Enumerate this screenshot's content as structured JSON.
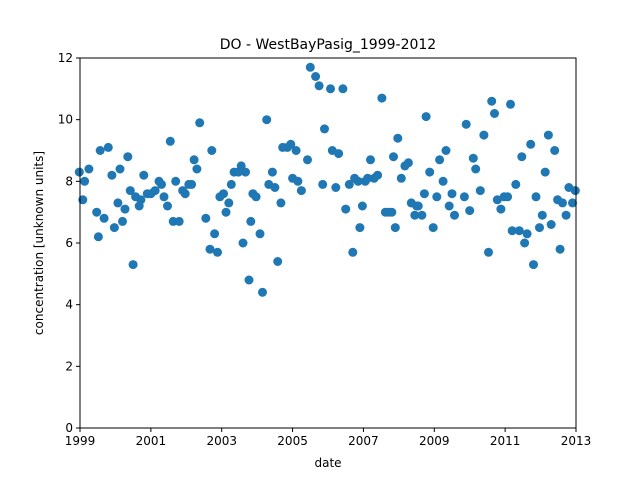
{
  "chart_data": {
    "type": "scatter",
    "title": "DO - WestBayPasig_1999-2012",
    "xlabel": "date",
    "ylabel": "concentration [unknown units]",
    "xlim": [
      1999,
      2013
    ],
    "ylim": [
      0,
      12
    ],
    "x_ticks": [
      "1999",
      "2001",
      "2003",
      "2005",
      "2007",
      "2009",
      "2011",
      "2013"
    ],
    "y_ticks": [
      "0",
      "2",
      "4",
      "6",
      "8",
      "10",
      "12"
    ],
    "grid": false,
    "marker_color": "#1f77b4",
    "series": [
      {
        "points": [
          [
            1998.98,
            8.3
          ],
          [
            1999.08,
            7.4
          ],
          [
            1999.13,
            8.0
          ],
          [
            1999.25,
            8.4
          ],
          [
            1999.47,
            7.0
          ],
          [
            1999.52,
            6.2
          ],
          [
            1999.57,
            9.0
          ],
          [
            1999.68,
            6.8
          ],
          [
            1999.8,
            9.1
          ],
          [
            1999.9,
            8.2
          ],
          [
            1999.97,
            6.5
          ],
          [
            2000.07,
            7.3
          ],
          [
            2000.13,
            8.4
          ],
          [
            2000.2,
            6.7
          ],
          [
            2000.27,
            7.1
          ],
          [
            2000.35,
            8.8
          ],
          [
            2000.42,
            7.7
          ],
          [
            2000.5,
            5.3
          ],
          [
            2000.57,
            7.5
          ],
          [
            2000.67,
            7.2
          ],
          [
            2000.72,
            7.4
          ],
          [
            2000.8,
            8.2
          ],
          [
            2000.9,
            7.6
          ],
          [
            2001.0,
            7.6
          ],
          [
            2001.12,
            7.7
          ],
          [
            2001.23,
            8.0
          ],
          [
            2001.3,
            7.9
          ],
          [
            2001.37,
            7.5
          ],
          [
            2001.47,
            7.2
          ],
          [
            2001.55,
            9.3
          ],
          [
            2001.63,
            6.7
          ],
          [
            2001.7,
            8.0
          ],
          [
            2001.8,
            6.7
          ],
          [
            2001.9,
            7.7
          ],
          [
            2001.97,
            7.6
          ],
          [
            2002.07,
            7.9
          ],
          [
            2002.15,
            7.9
          ],
          [
            2002.22,
            8.7
          ],
          [
            2002.3,
            8.4
          ],
          [
            2002.38,
            9.9
          ],
          [
            2002.55,
            6.8
          ],
          [
            2002.67,
            5.8
          ],
          [
            2002.72,
            9.0
          ],
          [
            2002.8,
            6.3
          ],
          [
            2002.88,
            5.7
          ],
          [
            2002.95,
            7.5
          ],
          [
            2003.05,
            7.6
          ],
          [
            2003.12,
            7.0
          ],
          [
            2003.2,
            7.3
          ],
          [
            2003.27,
            7.9
          ],
          [
            2003.35,
            8.3
          ],
          [
            2003.47,
            8.3
          ],
          [
            2003.55,
            8.5
          ],
          [
            2003.6,
            6.0
          ],
          [
            2003.67,
            8.3
          ],
          [
            2003.77,
            4.8
          ],
          [
            2003.82,
            6.7
          ],
          [
            2003.88,
            7.6
          ],
          [
            2003.97,
            7.5
          ],
          [
            2004.08,
            6.3
          ],
          [
            2004.15,
            4.4
          ],
          [
            2004.27,
            10.0
          ],
          [
            2004.33,
            7.9
          ],
          [
            2004.43,
            8.3
          ],
          [
            2004.5,
            7.8
          ],
          [
            2004.58,
            5.4
          ],
          [
            2004.67,
            7.3
          ],
          [
            2004.72,
            9.1
          ],
          [
            2004.85,
            9.1
          ],
          [
            2004.95,
            9.2
          ],
          [
            2005.0,
            8.1
          ],
          [
            2005.1,
            9.0
          ],
          [
            2005.15,
            8.0
          ],
          [
            2005.25,
            7.7
          ],
          [
            2005.42,
            8.7
          ],
          [
            2005.5,
            11.7
          ],
          [
            2005.65,
            11.4
          ],
          [
            2005.75,
            11.1
          ],
          [
            2005.85,
            7.9
          ],
          [
            2005.9,
            9.7
          ],
          [
            2006.07,
            11.0
          ],
          [
            2006.12,
            9.0
          ],
          [
            2006.22,
            7.8
          ],
          [
            2006.3,
            8.9
          ],
          [
            2006.42,
            11.0
          ],
          [
            2006.5,
            7.1
          ],
          [
            2006.6,
            7.9
          ],
          [
            2006.7,
            5.7
          ],
          [
            2006.75,
            8.1
          ],
          [
            2006.85,
            8.0
          ],
          [
            2006.9,
            6.5
          ],
          [
            2006.97,
            7.2
          ],
          [
            2007.05,
            8.0
          ],
          [
            2007.12,
            8.1
          ],
          [
            2007.2,
            8.7
          ],
          [
            2007.3,
            8.1
          ],
          [
            2007.4,
            8.2
          ],
          [
            2007.52,
            10.7
          ],
          [
            2007.62,
            7.0
          ],
          [
            2007.72,
            7.0
          ],
          [
            2007.8,
            7.0
          ],
          [
            2007.85,
            8.8
          ],
          [
            2007.9,
            6.5
          ],
          [
            2007.97,
            9.4
          ],
          [
            2008.07,
            8.1
          ],
          [
            2008.17,
            8.5
          ],
          [
            2008.27,
            8.6
          ],
          [
            2008.35,
            7.3
          ],
          [
            2008.45,
            6.9
          ],
          [
            2008.5,
            7.2
          ],
          [
            2008.55,
            7.2
          ],
          [
            2008.65,
            6.9
          ],
          [
            2008.72,
            7.6
          ],
          [
            2008.77,
            10.1
          ],
          [
            2008.87,
            8.3
          ],
          [
            2008.97,
            6.5
          ],
          [
            2009.07,
            7.5
          ],
          [
            2009.15,
            8.7
          ],
          [
            2009.25,
            8.0
          ],
          [
            2009.33,
            9.0
          ],
          [
            2009.42,
            7.2
          ],
          [
            2009.5,
            7.6
          ],
          [
            2009.57,
            6.9
          ],
          [
            2009.85,
            7.5
          ],
          [
            2009.9,
            9.85
          ],
          [
            2010.0,
            7.05
          ],
          [
            2010.1,
            8.75
          ],
          [
            2010.17,
            8.4
          ],
          [
            2010.3,
            7.7
          ],
          [
            2010.4,
            9.5
          ],
          [
            2010.53,
            5.7
          ],
          [
            2010.62,
            10.6
          ],
          [
            2010.7,
            10.2
          ],
          [
            2010.78,
            7.4
          ],
          [
            2010.88,
            7.1
          ],
          [
            2010.97,
            7.5
          ],
          [
            2011.07,
            7.5
          ],
          [
            2011.15,
            10.5
          ],
          [
            2011.2,
            6.4
          ],
          [
            2011.3,
            7.9
          ],
          [
            2011.4,
            6.4
          ],
          [
            2011.47,
            8.8
          ],
          [
            2011.55,
            6.0
          ],
          [
            2011.62,
            6.3
          ],
          [
            2011.72,
            9.2
          ],
          [
            2011.8,
            5.3
          ],
          [
            2011.87,
            7.5
          ],
          [
            2011.97,
            6.5
          ],
          [
            2012.05,
            6.9
          ],
          [
            2012.13,
            8.3
          ],
          [
            2012.22,
            9.5
          ],
          [
            2012.3,
            6.6
          ],
          [
            2012.4,
            9.0
          ],
          [
            2012.48,
            7.4
          ],
          [
            2012.55,
            5.8
          ],
          [
            2012.62,
            7.3
          ],
          [
            2012.72,
            6.9
          ],
          [
            2012.8,
            7.8
          ],
          [
            2012.9,
            7.3
          ],
          [
            2012.98,
            7.7
          ]
        ]
      }
    ]
  }
}
